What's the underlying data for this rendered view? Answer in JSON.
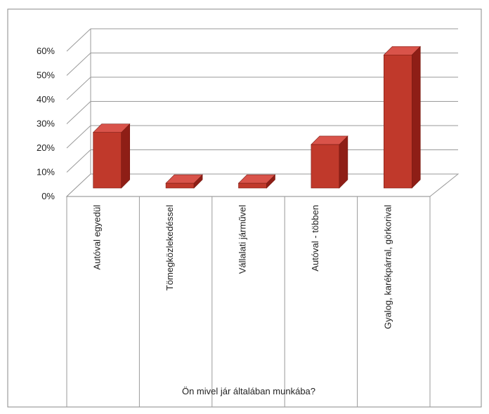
{
  "chart_data": {
    "type": "bar",
    "style": "3d-column",
    "categories": [
      "Autóval egyedül",
      "Tömegközlekedéssel",
      "Vállalati járművel",
      "Autóval - többen",
      "Gyalog, karékpárral, görkorival"
    ],
    "values": [
      0.23,
      0.02,
      0.02,
      0.18,
      0.55
    ],
    "value_format": "percent",
    "yticks": [
      "0%",
      "10%",
      "20%",
      "30%",
      "40%",
      "50%",
      "60%"
    ],
    "ylim": [
      0,
      0.6
    ],
    "xlabel": "Ön mivel jár általában munkába?",
    "ylabel": "",
    "title": "",
    "grid": true,
    "legend": "none",
    "bar_color": "#c0392b",
    "bar_side_color": "#8e1e16",
    "bar_top_color": "#d9534a"
  }
}
